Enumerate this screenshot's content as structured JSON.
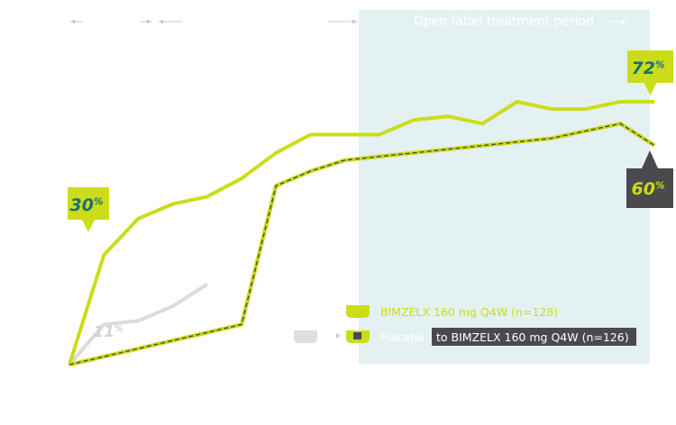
{
  "chart_data": {
    "type": "line",
    "period_label": "Open-label treatment period",
    "ylim": [
      0,
      80
    ],
    "x": [
      0,
      1,
      2,
      3,
      4,
      5,
      6,
      7,
      8,
      9,
      10,
      11,
      12,
      13,
      14,
      15,
      16,
      17
    ],
    "series": [
      {
        "name": "BIMZELX 160 mg Q4W (n=128)",
        "values": [
          0,
          30,
          40,
          44,
          46,
          51,
          58,
          63,
          63,
          63,
          67,
          68,
          66,
          72,
          70,
          70,
          72,
          72
        ]
      },
      {
        "name": "Placebo to BIMZELX 160 mg Q4W (n=126)",
        "values": [
          0,
          null,
          null,
          null,
          null,
          11,
          49,
          53,
          56,
          57,
          58,
          59,
          60,
          61,
          62,
          64,
          66,
          60
        ]
      }
    ],
    "placebo_segment": [
      0,
      11,
      12,
      16,
      22
    ],
    "callouts": [
      {
        "series": 0,
        "label": "30",
        "unit": "%"
      },
      {
        "series": 0,
        "label": "72",
        "unit": "%"
      },
      {
        "series": 1,
        "label": "60",
        "unit": "%"
      },
      {
        "series": "placebo",
        "label": "11",
        "unit": "%"
      }
    ],
    "legend": [
      {
        "label": "BIMZELX 160 mg Q4W (n=128)",
        "style": "solid-lime"
      },
      {
        "label_muted": "Placebo",
        "label": "to BIMZELX 160 mg Q4W (n=126)",
        "style": "dashed-dark"
      }
    ],
    "colors": {
      "lime": "#cbdc1a",
      "dark": "#4a4a4c",
      "grey": "#dcdcdc",
      "band": "#e4f1f2",
      "callout_text": "#1b6f73"
    }
  }
}
